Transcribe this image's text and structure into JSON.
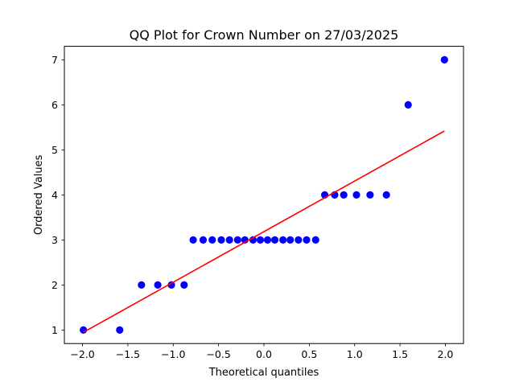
{
  "chart_data": {
    "type": "scatter",
    "title": "QQ Plot for Crown Number on 27/03/2025",
    "xlabel": "Theoretical quantiles",
    "ylabel": "Ordered Values",
    "xlim": [
      -2.2,
      2.2
    ],
    "ylim": [
      0.7,
      7.3
    ],
    "x_ticks": [
      -2.0,
      -1.5,
      -1.0,
      -0.5,
      0.0,
      0.5,
      1.0,
      1.5,
      2.0
    ],
    "x_tick_labels": [
      "−2.0",
      "−1.5",
      "−1.0",
      "−0.5",
      "0.0",
      "0.5",
      "1.0",
      "1.5",
      "2.0"
    ],
    "y_ticks": [
      1,
      2,
      3,
      4,
      5,
      6,
      7
    ],
    "y_tick_labels": [
      "1",
      "2",
      "3",
      "4",
      "5",
      "6",
      "7"
    ],
    "grid": false,
    "points": {
      "color": "#0000ff",
      "x": [
        -1.99,
        -1.59,
        -1.35,
        -1.17,
        -1.02,
        -0.88,
        -0.78,
        -0.67,
        -0.57,
        -0.47,
        -0.38,
        -0.29,
        -0.21,
        -0.12,
        -0.04,
        0.04,
        0.12,
        0.21,
        0.29,
        0.38,
        0.47,
        0.57,
        0.67,
        0.78,
        0.88,
        1.02,
        1.17,
        1.35,
        1.59,
        1.99
      ],
      "y": [
        1,
        1,
        2,
        2,
        2,
        2,
        3,
        3,
        3,
        3,
        3,
        3,
        3,
        3,
        3,
        3,
        3,
        3,
        3,
        3,
        3,
        3,
        4,
        4,
        4,
        4,
        4,
        4,
        6,
        7
      ]
    },
    "fit_line": {
      "color": "#ff0000",
      "x": [
        -1.99,
        1.99
      ],
      "y": [
        0.95,
        5.42
      ]
    }
  }
}
